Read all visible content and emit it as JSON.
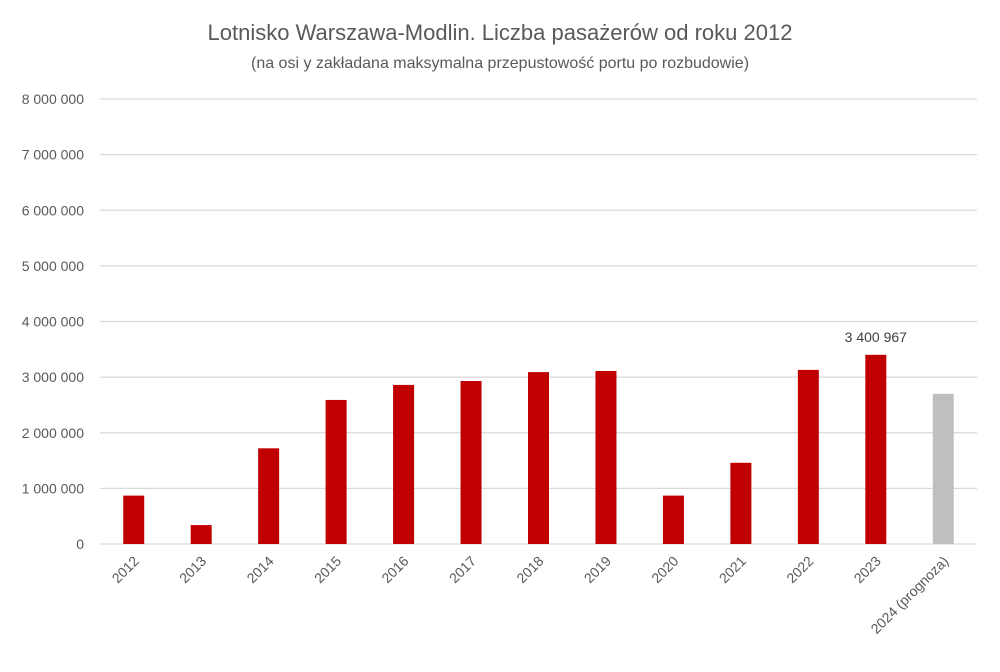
{
  "chart_data": {
    "type": "bar",
    "title": "Lotnisko Warszawa-Modlin. Liczba pasażerów od roku 2012",
    "subtitle": "(na osi y zakładana maksymalna przepustowość portu po rozbudowie)",
    "xlabel": "",
    "ylabel": "",
    "ylim": [
      0,
      8000000
    ],
    "yticks": [
      0,
      1000000,
      2000000,
      3000000,
      4000000,
      5000000,
      6000000,
      7000000,
      8000000
    ],
    "ytick_labels": [
      "0",
      "1 000 000",
      "2 000 000",
      "3 000 000",
      "4 000 000",
      "5 000 000",
      "6 000 000",
      "7 000 000",
      "8 000 000"
    ],
    "grid": true,
    "legend": "none",
    "categories": [
      "2012",
      "2013",
      "2014",
      "2015",
      "2016",
      "2017",
      "2018",
      "2019",
      "2020",
      "2021",
      "2022",
      "2023",
      "2024 (prognoza)"
    ],
    "values": [
      870000,
      340000,
      1720000,
      2590000,
      2860000,
      2930000,
      3090000,
      3110000,
      870000,
      1460000,
      3130000,
      3400967,
      2700000
    ],
    "colors": [
      "#c00000",
      "#c00000",
      "#c00000",
      "#c00000",
      "#c00000",
      "#c00000",
      "#c00000",
      "#c00000",
      "#c00000",
      "#c00000",
      "#c00000",
      "#c00000",
      "#bfbfbf"
    ],
    "data_labels": [
      {
        "category": "2023",
        "text": "3 400 967"
      }
    ]
  }
}
